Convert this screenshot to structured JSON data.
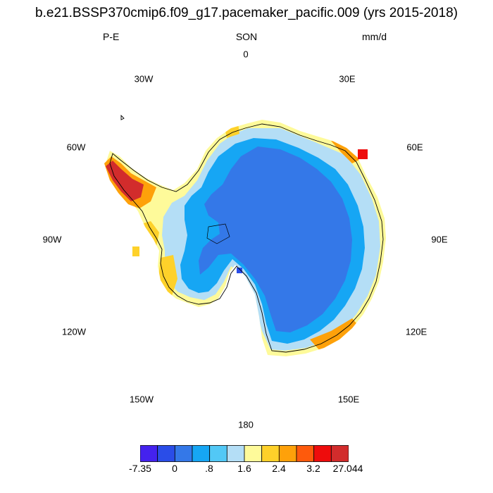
{
  "title": "b.e21.BSSP370cmip6.f09_g17.pacemaker_pacific.009 (yrs 2015-2018)",
  "subtitle_left": "P-E",
  "subtitle_center": "SON",
  "subtitle_right": "mm/d",
  "longitude_labels": [
    "0",
    "30E",
    "60E",
    "90E",
    "120E",
    "150E",
    "180",
    "150W",
    "120W",
    "90W",
    "60W",
    "30W"
  ],
  "colorbar": {
    "colors": [
      "#4422ee",
      "#2a4de8",
      "#3478e8",
      "#16a6f4",
      "#52c8f6",
      "#b4def6",
      "#fefa9a",
      "#fed12a",
      "#fea10a",
      "#fe5a0c",
      "#ee0c0c",
      "#d22c2c"
    ],
    "labels": [
      "-7.35",
      "0",
      ".8",
      "1.6",
      "2.4",
      "3.2",
      "27.044"
    ]
  }
}
